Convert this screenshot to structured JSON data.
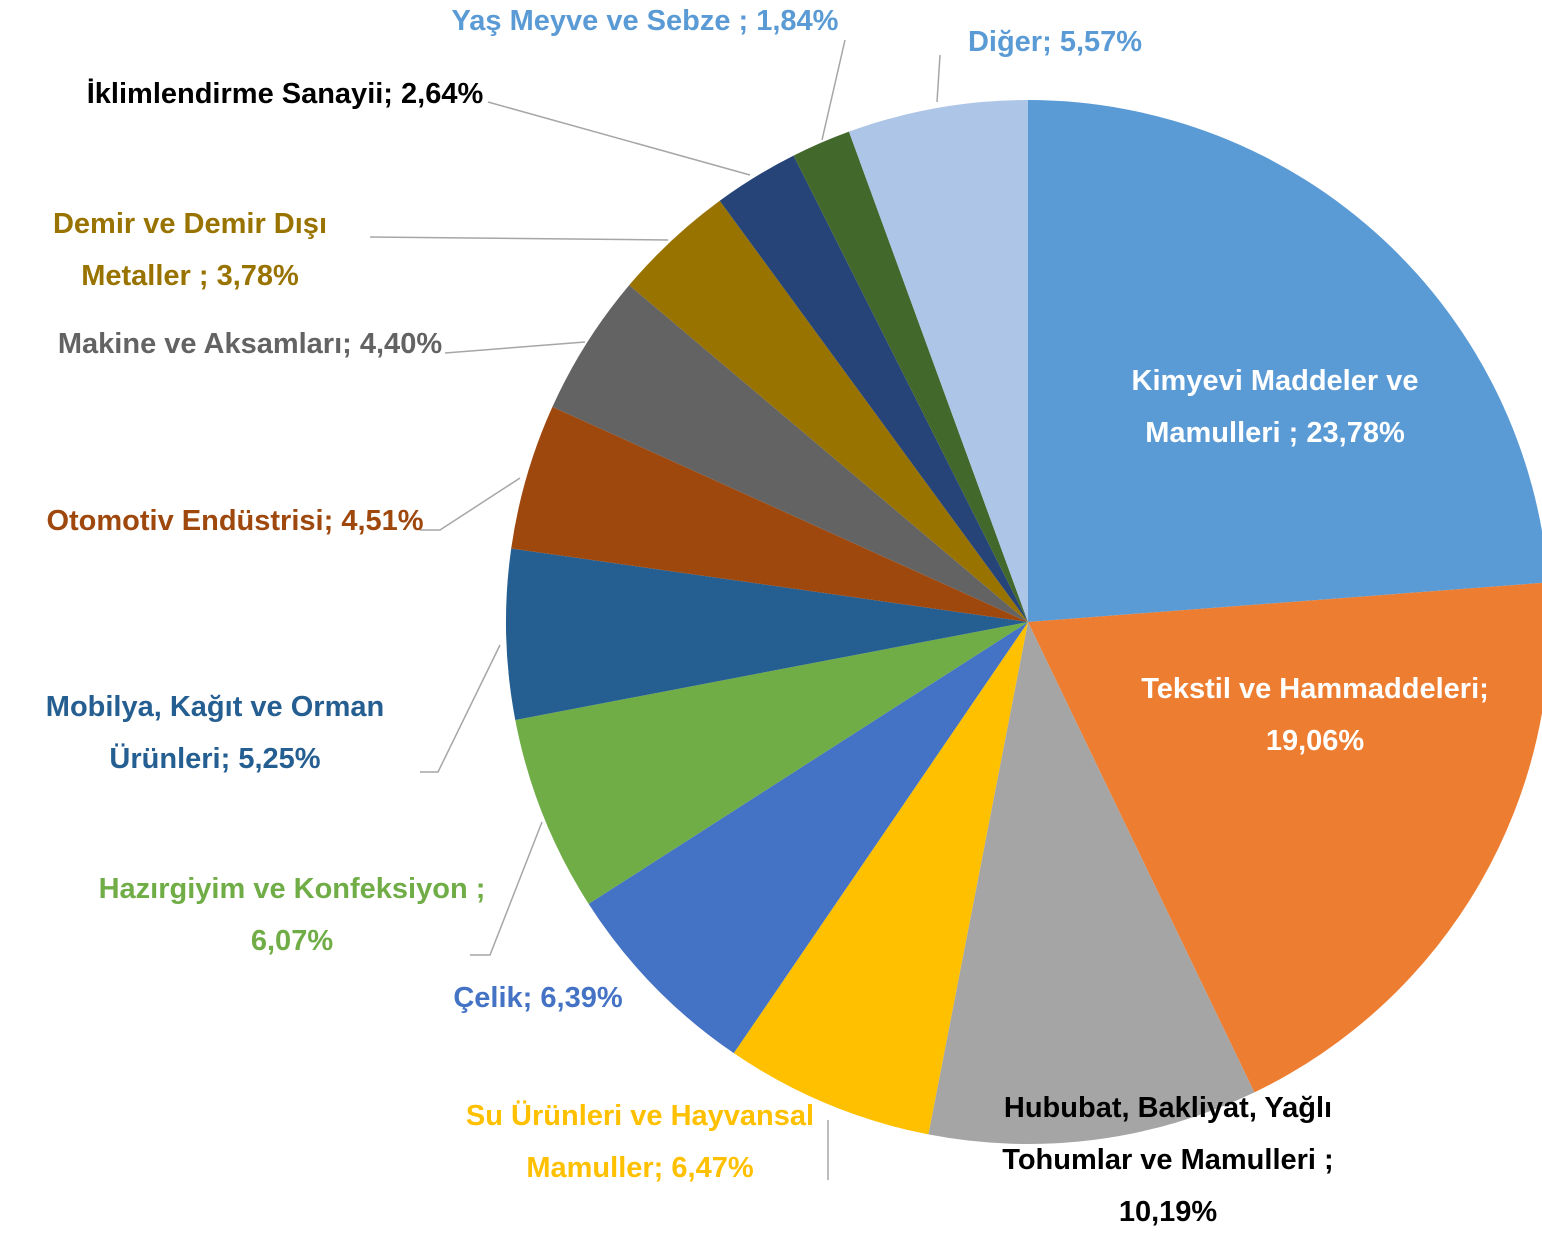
{
  "chart_data": {
    "type": "pie",
    "categories": [
      "Kimyevi Maddeler ve Mamulleri  ;",
      "Tekstil ve Hammaddeleri;",
      "Hububat, Bakliyat, Yağlı Tohumlar ve Mamulleri ;",
      "Su Ürünleri ve Hayvansal Mamuller;",
      "Çelik;",
      "Hazırgiyim ve Konfeksiyon ;",
      "Mobilya, Kağıt ve Orman Ürünleri;",
      "Otomotiv Endüstrisi;",
      "Makine ve Aksamları;",
      "Demir ve Demir Dışı Metaller ;",
      "İklimlendirme Sanayii;",
      "Yaş Meyve ve Sebze  ;",
      "Diğer;"
    ],
    "values": [
      23.78,
      19.06,
      10.19,
      6.47,
      6.39,
      6.07,
      5.25,
      4.51,
      4.4,
      3.78,
      2.64,
      1.84,
      5.57
    ],
    "value_labels": [
      "23,78%",
      "19,06%",
      "10,19%",
      "6,47%",
      "6,39%",
      "6,07%",
      "5,25%",
      "4,51%",
      "4,40%",
      "3,78%",
      "2,64%",
      "1,84%",
      "5,57%"
    ],
    "colors": [
      "#5b9bd5",
      "#ed7d31",
      "#a5a5a5",
      "#ffc000",
      "#4472c4",
      "#70ad47",
      "#255e91",
      "#9e480e",
      "#636363",
      "#997300",
      "#264478",
      "#43682b",
      "#adc5e6"
    ],
    "label_colors": [
      "#ffffff",
      "#ffffff",
      "#000000",
      "#ffc000",
      "#4472c4",
      "#70ad47",
      "#255e91",
      "#9e480e",
      "#636363",
      "#997300",
      "#000000",
      "#5b9bd5",
      "#5b9bd5"
    ]
  }
}
